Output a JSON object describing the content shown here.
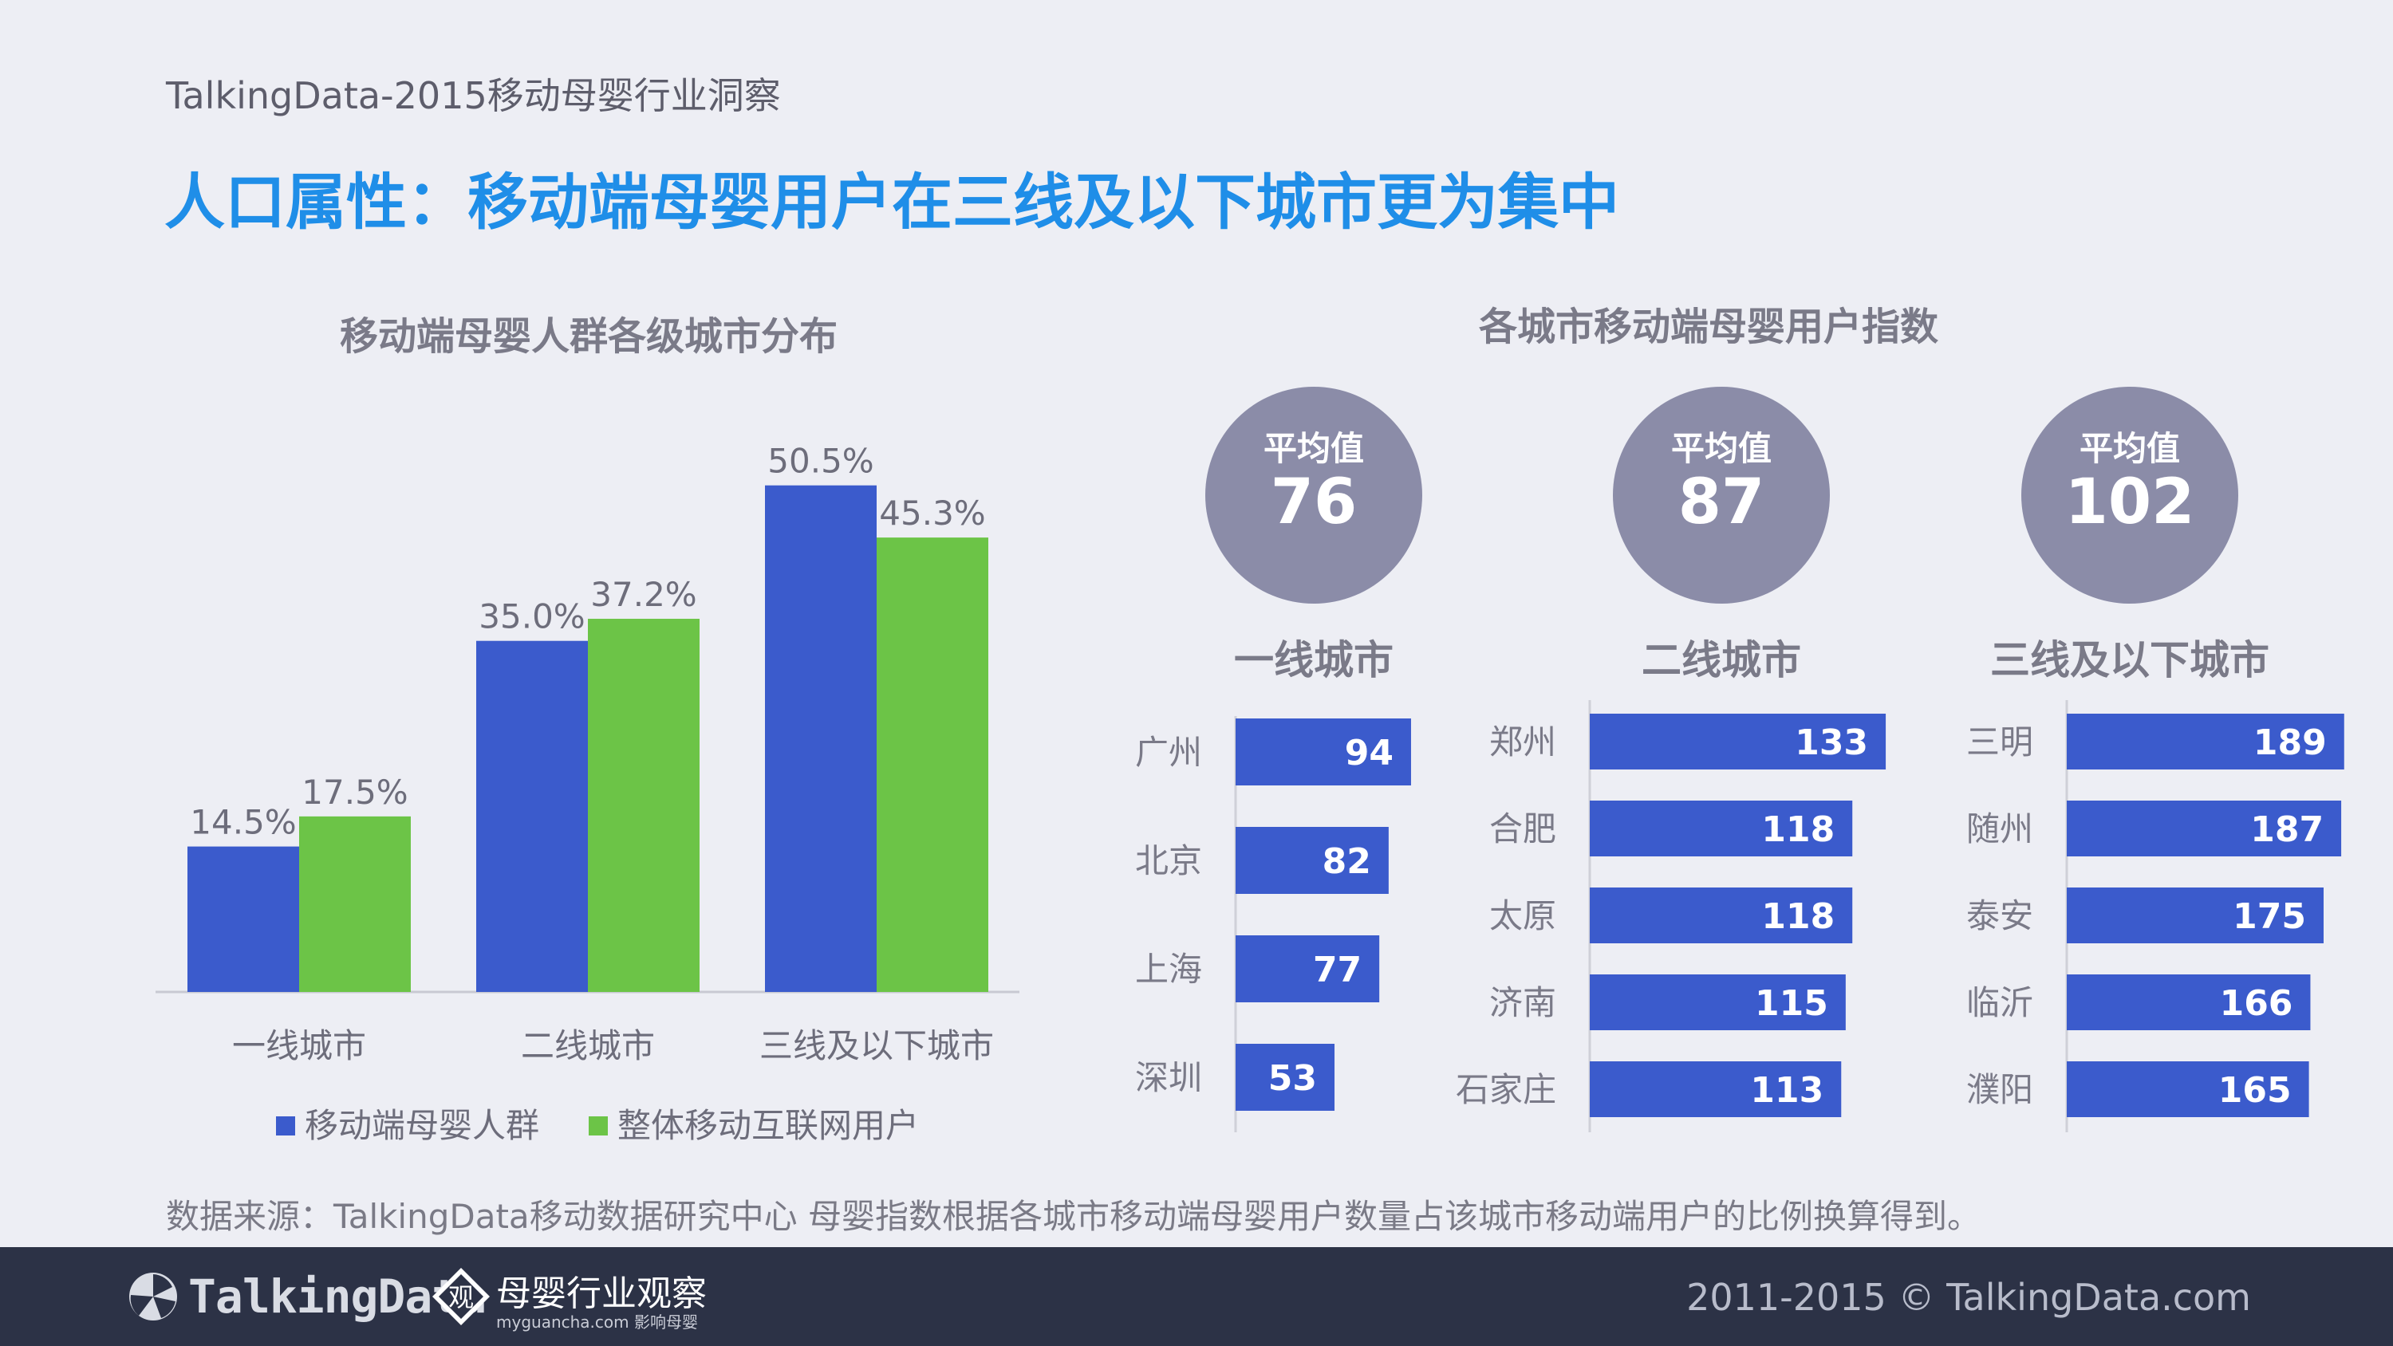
{
  "header": {
    "source": "TalkingData-2015移动母婴行业洞察",
    "title": "人口属性：移动端母婴用户在三线及以下城市更为集中"
  },
  "colors": {
    "blue": "#3b5bcc",
    "green": "#6cc447",
    "title_blue": "#1f8ee8",
    "circle": "#8b8ca8",
    "footer": "#2c3246"
  },
  "chart_data": [
    {
      "type": "bar",
      "title": "移动端母婴人群各级城市分布",
      "categories": [
        "一线城市",
        "二线城市",
        "三线及以下城市"
      ],
      "series": [
        {
          "name": "移动端母婴人群",
          "values": [
            14.5,
            35.0,
            50.5
          ],
          "labels": [
            "14.5%",
            "35.0%",
            "50.5%"
          ]
        },
        {
          "name": "整体移动互联网用户",
          "values": [
            17.5,
            37.2,
            45.3
          ],
          "labels": [
            "17.5%",
            "37.2%",
            "45.3%"
          ]
        }
      ],
      "ylim": [
        0,
        55
      ],
      "legend": "bottom"
    },
    {
      "type": "bar",
      "orientation": "horizontal",
      "title": "各城市移动端母婴用户指数",
      "tier": "一线城市",
      "average_label": "平均值",
      "average": 76,
      "categories": [
        "广州",
        "北京",
        "上海",
        "深圳"
      ],
      "values": [
        94,
        82,
        77,
        53
      ]
    },
    {
      "type": "bar",
      "orientation": "horizontal",
      "tier": "二线城市",
      "average_label": "平均值",
      "average": 87,
      "categories": [
        "郑州",
        "合肥",
        "太原",
        "济南",
        "石家庄"
      ],
      "values": [
        133,
        118,
        118,
        115,
        113
      ]
    },
    {
      "type": "bar",
      "orientation": "horizontal",
      "tier": "三线及以下城市",
      "average_label": "平均值",
      "average": 102,
      "categories": [
        "三明",
        "随州",
        "泰安",
        "临沂",
        "濮阳"
      ],
      "values": [
        189,
        187,
        175,
        166,
        165
      ]
    }
  ],
  "footnote": "数据来源：TalkingData移动数据研究中心 母婴指数根据各城市移动端母婴用户数量占该城市移动端用户的比例换算得到。",
  "footer": {
    "brand": "TalkingData",
    "partner_name": "母婴行业观察",
    "partner_site": "myguancha.com 影响母婴",
    "partner_glyph": "观",
    "copyright": "2011-2015 © TalkingData.com"
  }
}
